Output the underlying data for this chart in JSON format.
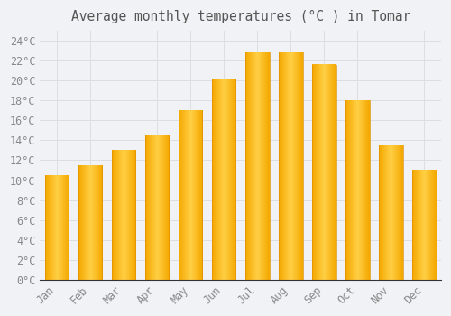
{
  "title": "Average monthly temperatures (°C ) in Tomar",
  "months": [
    "Jan",
    "Feb",
    "Mar",
    "Apr",
    "May",
    "Jun",
    "Jul",
    "Aug",
    "Sep",
    "Oct",
    "Nov",
    "Dec"
  ],
  "values": [
    10.5,
    11.5,
    13.0,
    14.5,
    17.0,
    20.2,
    22.8,
    22.8,
    21.6,
    18.0,
    13.5,
    11.0
  ],
  "bar_color_center": "#FFD045",
  "bar_color_edge": "#F5A800",
  "background_color": "#F0F2F5",
  "grid_color": "#DCDEE0",
  "text_color": "#888888",
  "title_color": "#555555",
  "ylim": [
    0,
    25
  ],
  "ytick_step": 2,
  "title_fontsize": 10.5,
  "tick_fontsize": 8.5
}
